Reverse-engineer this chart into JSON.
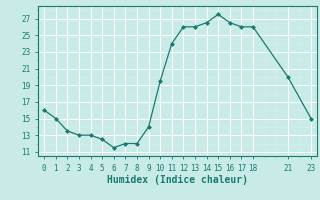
{
  "x": [
    0,
    1,
    2,
    3,
    4,
    5,
    6,
    7,
    8,
    9,
    10,
    11,
    12,
    13,
    14,
    15,
    16,
    17,
    18,
    21,
    23
  ],
  "y": [
    16,
    15,
    13.5,
    13,
    13,
    12.5,
    11.5,
    12,
    12,
    14,
    19.5,
    24,
    26,
    26,
    26.5,
    27.5,
    26.5,
    26,
    26,
    20,
    15
  ],
  "line_color": "#1a7a6e",
  "marker": "D",
  "marker_size": 2.0,
  "bg_color": "#c8ebe8",
  "grid_major_color": "#ffffff",
  "grid_minor_color": "#daf0ee",
  "xlabel": "Humidex (Indice chaleur)",
  "xlabel_fontsize": 7,
  "yticks": [
    11,
    13,
    15,
    17,
    19,
    21,
    23,
    25,
    27
  ],
  "xlim": [
    -0.5,
    23.5
  ],
  "ylim": [
    10.5,
    28.5
  ],
  "xticks": [
    0,
    1,
    2,
    3,
    4,
    5,
    6,
    7,
    8,
    9,
    10,
    11,
    12,
    13,
    14,
    15,
    16,
    17,
    18,
    21,
    23
  ],
  "tick_fontsize": 5.5
}
